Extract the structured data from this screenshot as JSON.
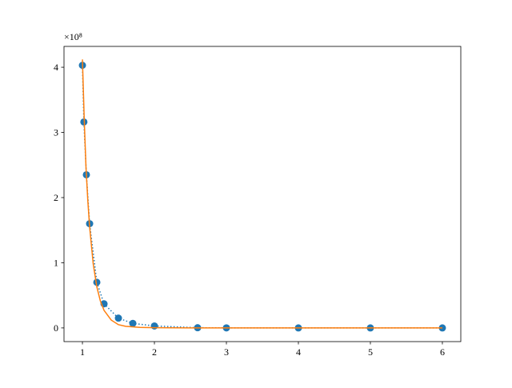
{
  "chart_data": {
    "type": "scatter",
    "y_offset_label": "×10⁸",
    "xlim": [
      0.744,
      6.256
    ],
    "xticks": [
      1,
      2,
      3,
      4,
      5,
      6
    ],
    "ylim": [
      -0.21,
      4.32
    ],
    "yticks": [
      0,
      1,
      2,
      3,
      4
    ],
    "series": [
      {
        "color": "#1f77b4",
        "marker": "circle",
        "line": "dotted",
        "x": [
          1,
          1.02,
          1.055,
          1.1,
          1.2,
          1.3,
          1.5,
          1.7,
          2,
          2.6,
          3,
          4,
          5,
          6
        ],
        "values": [
          4.03,
          3.16,
          2.35,
          1.6,
          0.7,
          0.37,
          0.15,
          0.07,
          0.03,
          0.003,
          0.001,
          0,
          0,
          0
        ]
      },
      {
        "color": "#ff7f0e",
        "marker": "none",
        "line": "solid",
        "x": [
          1,
          1.025,
          1.05,
          1.075,
          1.1,
          1.15,
          1.2,
          1.25,
          1.3,
          1.4,
          1.5,
          1.6,
          1.8,
          2,
          2.5,
          3,
          4,
          5,
          6
        ],
        "values": [
          4.12,
          3.2,
          2.45,
          1.95,
          1.55,
          0.98,
          0.63,
          0.41,
          0.27,
          0.12,
          0.05,
          0.025,
          0.008,
          0.003,
          0,
          0,
          0,
          0,
          0
        ]
      }
    ]
  }
}
